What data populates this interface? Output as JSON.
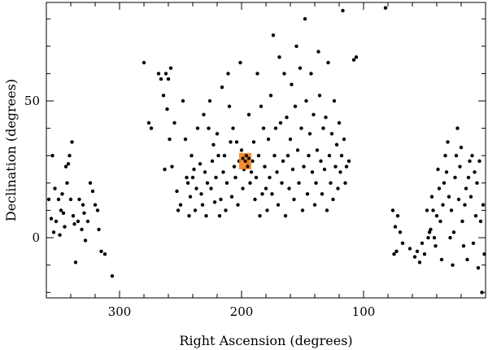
{
  "chart_data": {
    "type": "scatter",
    "title": "",
    "xlabel": "Right Ascension (degrees)",
    "ylabel": "Declination (degrees)",
    "xlim": [
      360,
      0
    ],
    "ylim": [
      -22,
      86
    ],
    "x_ticks": [
      300,
      200,
      100
    ],
    "y_ticks": [
      50,
      0
    ],
    "highlight": {
      "ra_range": [
        192,
        202
      ],
      "dec_range": [
        25,
        31
      ],
      "color": "#f5821f"
    },
    "series": [
      {
        "color": "#000000",
        "points": [
          [
            358,
            14
          ],
          [
            356,
            7
          ],
          [
            355,
            30
          ],
          [
            354,
            2
          ],
          [
            353,
            18
          ],
          [
            352,
            6
          ],
          [
            350,
            14
          ],
          [
            349,
            1
          ],
          [
            348,
            10
          ],
          [
            347,
            16
          ],
          [
            346,
            9
          ],
          [
            345,
            4
          ],
          [
            344,
            26
          ],
          [
            343,
            20
          ],
          [
            342,
            27
          ],
          [
            341,
            30
          ],
          [
            340,
            14
          ],
          [
            339,
            35
          ],
          [
            338,
            8
          ],
          [
            337,
            5
          ],
          [
            336,
            -9
          ],
          [
            334,
            6
          ],
          [
            333,
            14
          ],
          [
            331,
            3
          ],
          [
            330,
            12
          ],
          [
            329,
            9
          ],
          [
            328,
            -1
          ],
          [
            326,
            6
          ],
          [
            324,
            20
          ],
          [
            322,
            17
          ],
          [
            320,
            12
          ],
          [
            318,
            10
          ],
          [
            317,
            3
          ],
          [
            315,
            -5
          ],
          [
            312,
            -6
          ],
          [
            306,
            -14
          ],
          [
            280,
            64
          ],
          [
            276,
            42
          ],
          [
            274,
            40
          ],
          [
            268,
            60
          ],
          [
            266,
            58
          ],
          [
            264,
            52
          ],
          [
            263,
            25
          ],
          [
            262,
            60
          ],
          [
            261,
            47
          ],
          [
            260,
            58
          ],
          [
            259,
            36
          ],
          [
            258,
            62
          ],
          [
            257,
            26
          ],
          [
            255,
            42
          ],
          [
            253,
            17
          ],
          [
            252,
            10
          ],
          [
            250,
            12
          ],
          [
            248,
            50
          ],
          [
            246,
            36
          ],
          [
            245,
            22
          ],
          [
            244,
            20
          ],
          [
            243,
            8
          ],
          [
            242,
            15
          ],
          [
            241,
            30
          ],
          [
            240,
            22
          ],
          [
            239,
            25
          ],
          [
            238,
            10
          ],
          [
            237,
            18
          ],
          [
            236,
            40
          ],
          [
            234,
            27
          ],
          [
            233,
            16
          ],
          [
            232,
            12
          ],
          [
            231,
            45
          ],
          [
            230,
            24
          ],
          [
            229,
            8
          ],
          [
            228,
            20
          ],
          [
            227,
            40
          ],
          [
            226,
            50
          ],
          [
            225,
            18
          ],
          [
            224,
            28
          ],
          [
            223,
            34
          ],
          [
            222,
            13
          ],
          [
            221,
            22
          ],
          [
            220,
            38
          ],
          [
            219,
            30
          ],
          [
            218,
            8
          ],
          [
            217,
            14
          ],
          [
            216,
            55
          ],
          [
            215,
            24
          ],
          [
            214,
            30
          ],
          [
            213,
            10
          ],
          [
            212,
            20
          ],
          [
            211,
            60
          ],
          [
            210,
            48
          ],
          [
            209,
            35
          ],
          [
            208,
            15
          ],
          [
            207,
            40
          ],
          [
            206,
            26
          ],
          [
            205,
            22
          ],
          [
            204,
            35
          ],
          [
            203,
            12
          ],
          [
            202,
            28
          ],
          [
            201,
            64
          ],
          [
            200,
            32
          ],
          [
            199,
            18
          ],
          [
            198,
            25
          ],
          [
            197,
            30
          ],
          [
            196,
            28
          ],
          [
            195,
            27
          ],
          [
            194,
            45
          ],
          [
            193,
            20
          ],
          [
            192,
            24
          ],
          [
            191,
            28
          ],
          [
            190,
            35
          ],
          [
            189,
            14
          ],
          [
            188,
            22
          ],
          [
            187,
            60
          ],
          [
            186,
            30
          ],
          [
            185,
            8
          ],
          [
            184,
            48
          ],
          [
            183,
            16
          ],
          [
            182,
            40
          ],
          [
            181,
            26
          ],
          [
            180,
            18
          ],
          [
            179,
            10
          ],
          [
            178,
            36
          ],
          [
            177,
            22
          ],
          [
            176,
            52
          ],
          [
            175,
            16
          ],
          [
            174,
            74
          ],
          [
            173,
            30
          ],
          [
            172,
            40
          ],
          [
            171,
            24
          ],
          [
            170,
            12
          ],
          [
            169,
            66
          ],
          [
            168,
            42
          ],
          [
            167,
            20
          ],
          [
            166,
            28
          ],
          [
            165,
            60
          ],
          [
            164,
            8
          ],
          [
            163,
            44
          ],
          [
            162,
            30
          ],
          [
            161,
            18
          ],
          [
            160,
            36
          ],
          [
            159,
            56
          ],
          [
            158,
            25
          ],
          [
            157,
            14
          ],
          [
            156,
            48
          ],
          [
            155,
            70
          ],
          [
            154,
            32
          ],
          [
            153,
            20
          ],
          [
            152,
            62
          ],
          [
            151,
            40
          ],
          [
            150,
            10
          ],
          [
            149,
            26
          ],
          [
            148,
            80
          ],
          [
            147,
            50
          ],
          [
            146,
            16
          ],
          [
            145,
            30
          ],
          [
            144,
            38
          ],
          [
            143,
            60
          ],
          [
            142,
            24
          ],
          [
            141,
            45
          ],
          [
            140,
            12
          ],
          [
            139,
            20
          ],
          [
            138,
            32
          ],
          [
            137,
            68
          ],
          [
            136,
            52
          ],
          [
            135,
            28
          ],
          [
            134,
            16
          ],
          [
            133,
            40
          ],
          [
            132,
            25
          ],
          [
            131,
            44
          ],
          [
            130,
            10
          ],
          [
            129,
            64
          ],
          [
            128,
            30
          ],
          [
            127,
            20
          ],
          [
            126,
            38
          ],
          [
            125,
            14
          ],
          [
            124,
            50
          ],
          [
            123,
            26
          ],
          [
            122,
            34
          ],
          [
            121,
            18
          ],
          [
            120,
            42
          ],
          [
            119,
            24
          ],
          [
            118,
            30
          ],
          [
            117,
            83
          ],
          [
            116,
            36
          ],
          [
            115,
            20
          ],
          [
            114,
            26
          ],
          [
            112,
            28
          ],
          [
            108,
            65
          ],
          [
            106,
            66
          ],
          [
            82,
            84
          ],
          [
            76,
            10
          ],
          [
            75,
            -6
          ],
          [
            74,
            4
          ],
          [
            73,
            -5
          ],
          [
            72,
            8
          ],
          [
            70,
            2
          ],
          [
            68,
            -2
          ],
          [
            62,
            -4
          ],
          [
            58,
            -7
          ],
          [
            56,
            -5
          ],
          [
            54,
            -9
          ],
          [
            52,
            -2
          ],
          [
            50,
            -6
          ],
          [
            48,
            10
          ],
          [
            47,
            0
          ],
          [
            46,
            2
          ],
          [
            45,
            3
          ],
          [
            44,
            15
          ],
          [
            43,
            10
          ],
          [
            42,
            0
          ],
          [
            41,
            -3
          ],
          [
            40,
            8
          ],
          [
            39,
            25
          ],
          [
            38,
            18
          ],
          [
            37,
            6
          ],
          [
            36,
            -8
          ],
          [
            35,
            12
          ],
          [
            34,
            20
          ],
          [
            33,
            30
          ],
          [
            32,
            24
          ],
          [
            31,
            35
          ],
          [
            30,
            15
          ],
          [
            29,
            0
          ],
          [
            28,
            10
          ],
          [
            27,
            -10
          ],
          [
            26,
            2
          ],
          [
            25,
            22
          ],
          [
            24,
            30
          ],
          [
            23,
            40
          ],
          [
            22,
            14
          ],
          [
            21,
            26
          ],
          [
            20,
            33
          ],
          [
            19,
            6
          ],
          [
            18,
            -3
          ],
          [
            17,
            12
          ],
          [
            16,
            18
          ],
          [
            15,
            -8
          ],
          [
            14,
            22
          ],
          [
            13,
            28
          ],
          [
            12,
            15
          ],
          [
            11,
            30
          ],
          [
            10,
            -2
          ],
          [
            9,
            24
          ],
          [
            8,
            8
          ],
          [
            7,
            20
          ],
          [
            6,
            -11
          ],
          [
            5,
            28
          ],
          [
            4,
            6
          ],
          [
            3,
            -20
          ],
          [
            2,
            12
          ],
          [
            1,
            -6
          ]
        ]
      }
    ]
  }
}
